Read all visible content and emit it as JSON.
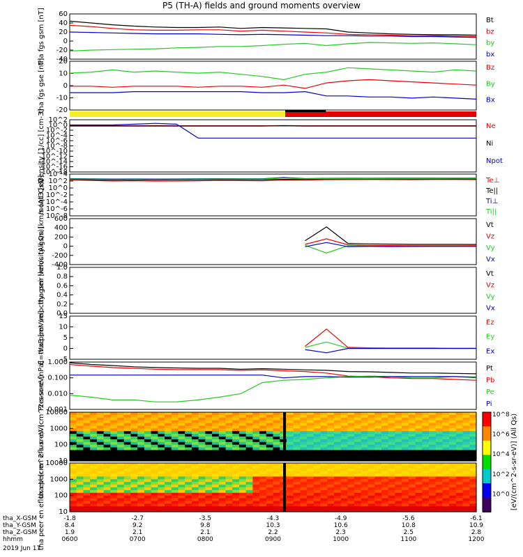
{
  "header": {
    "title": "P5 (TH-A) fields and ground moments overview"
  },
  "colors": {
    "black": "#000000",
    "red": "#ee0000",
    "green": "#22cc22",
    "blue": "#0000cc"
  },
  "chart_data": [
    {
      "type": "line",
      "ylabel": "tha fgs gsm [nT]",
      "yticks": [
        "60",
        "40",
        "20",
        "0",
        "-20",
        "-40"
      ],
      "ylim": [
        -40,
        60
      ],
      "series": [
        {
          "name": "Bt",
          "color": "#000000",
          "values": [
            44,
            40,
            36,
            33,
            31,
            30,
            30,
            31,
            28,
            30,
            29,
            28,
            27,
            20,
            18,
            16,
            15,
            14,
            14,
            13
          ]
        },
        {
          "name": "bz",
          "color": "#ee0000",
          "values": [
            35,
            32,
            28,
            25,
            24,
            24,
            25,
            25,
            22,
            24,
            22,
            20,
            18,
            15,
            14,
            13,
            12,
            12,
            11,
            10
          ]
        },
        {
          "name": "by",
          "color": "#22cc22",
          "values": [
            -22,
            -20,
            -19,
            -18,
            -17,
            -15,
            -14,
            -12,
            -12,
            -10,
            -7,
            -5,
            -10,
            -6,
            -3,
            -4,
            -5,
            -4,
            -6,
            -8
          ]
        },
        {
          "name": "bx",
          "color": "#0000cc",
          "values": [
            20,
            19,
            18,
            17,
            16,
            16,
            16,
            15,
            14,
            15,
            14,
            13,
            12,
            12,
            11,
            11,
            10,
            10,
            9,
            8
          ]
        }
      ]
    },
    {
      "type": "line",
      "ylabel": "tha fgs gse [nT]",
      "yticks": [
        "20",
        "10",
        "0",
        "-10",
        "-20"
      ],
      "ylim": [
        -25,
        20
      ],
      "series": [
        {
          "name": "Bz",
          "color": "#ee0000",
          "values": [
            -3,
            -3,
            -4,
            -3,
            -3,
            -3,
            -4,
            -3,
            -3,
            -4,
            -2,
            -5,
            0,
            2,
            3,
            2,
            1,
            0,
            -1,
            -2
          ]
        },
        {
          "name": "By",
          "color": "#22cc22",
          "values": [
            9,
            10,
            12,
            10,
            11,
            10,
            9,
            10,
            8,
            6,
            3,
            8,
            10,
            14,
            13,
            12,
            11,
            10,
            12,
            11
          ]
        },
        {
          "name": "Bx",
          "color": "#0000cc",
          "values": [
            -9,
            -9,
            -9,
            -8,
            -8,
            -8,
            -8,
            -8,
            -8,
            -9,
            -9,
            -8,
            -12,
            -12,
            -13,
            -13,
            -14,
            -13,
            -14,
            -15
          ]
        }
      ]
    },
    {
      "type": "line",
      "ylabel": "Density [1/cc] [cm-3]",
      "yticks": [
        "10^2",
        "10^0",
        "10^-2",
        "10^-4",
        "10^-6",
        "10^-8",
        "10^-10",
        "10^-12",
        "10^-14",
        "10^-16",
        "10^-18"
      ],
      "log": true,
      "series": [
        {
          "name": "Ne",
          "color": "#ee0000",
          "values": [
            0.5,
            0.5,
            0.5,
            0.5,
            0.6,
            0.5,
            0.5,
            0.5,
            0.5,
            0.5,
            0.6,
            0.5,
            0.5,
            0.5,
            0.5,
            0.5,
            0.5,
            0.5,
            0.5,
            0.5
          ]
        },
        {
          "name": "Ni",
          "color": "#000000",
          "values": [
            0.4,
            0.4,
            0.4,
            0.4,
            0.4,
            0.4,
            0.4,
            0.4,
            0.4,
            0.4,
            0.5,
            0.4,
            0.4,
            0.4,
            0.4,
            0.4,
            0.4,
            0.4,
            0.4,
            0.4
          ]
        },
        {
          "name": "Npot",
          "color": "#0000cc",
          "values": [
            1,
            1,
            1,
            2,
            4,
            2,
            1e-05,
            1e-05,
            1e-05,
            1e-05,
            1e-05,
            1e-05,
            1e-05,
            1e-05,
            1e-05,
            1e-05,
            1e-05,
            1e-05,
            1e-05,
            1e-05
          ]
        }
      ]
    },
    {
      "type": "line",
      "ylabel": "moqt3 [eV]",
      "yticks": [
        "10^4",
        "10^2",
        "10^0",
        "10^-2",
        "10^-4",
        "10^-6",
        "10^-8"
      ],
      "log": true,
      "series": [
        {
          "name": "Te⊥",
          "color": "#ee0000",
          "values": [
            200,
            150,
            100,
            120,
            90,
            100,
            120,
            150,
            130,
            120,
            200,
            180,
            250,
            260,
            270,
            260,
            250,
            270,
            280,
            260
          ]
        },
        {
          "name": "Te||",
          "color": "#000000",
          "values": [
            300,
            250,
            200,
            220,
            200,
            220,
            250,
            280,
            260,
            250,
            300,
            300,
            350,
            360,
            370,
            360,
            350,
            370,
            380,
            360
          ]
        },
        {
          "name": "Ti⊥",
          "color": "#0000cc",
          "values": [
            500,
            450,
            400,
            420,
            400,
            420,
            450,
            480,
            460,
            450,
            1000,
            500,
            600,
            620,
            640,
            650,
            660,
            680,
            700,
            720
          ]
        },
        {
          "name": "Ti||",
          "color": "#22cc22",
          "values": [
            400,
            380,
            350,
            360,
            340,
            360,
            380,
            400,
            390,
            380,
            700,
            420,
            500,
            510,
            520,
            530,
            540,
            560,
            580,
            600
          ]
        }
      ]
    },
    {
      "type": "line",
      "ylabel": "tha peir velocity gsm [km/s (All Qs)]",
      "yticks": [
        "600",
        "400",
        "200",
        "0",
        "-200",
        "-400"
      ],
      "ylim": [
        -400,
        600
      ],
      "series": [
        {
          "name": "Vt",
          "color": "#000000",
          "values": [
            null,
            null,
            null,
            null,
            null,
            null,
            null,
            null,
            null,
            null,
            null,
            120,
            420,
            60,
            50,
            45,
            40,
            40,
            40,
            38
          ]
        },
        {
          "name": "Vz",
          "color": "#ee0000",
          "values": [
            null,
            null,
            null,
            null,
            null,
            null,
            null,
            null,
            null,
            null,
            null,
            40,
            160,
            30,
            20,
            15,
            10,
            10,
            12,
            10
          ]
        },
        {
          "name": "Vy",
          "color": "#22cc22",
          "values": [
            null,
            null,
            null,
            null,
            null,
            null,
            null,
            null,
            null,
            null,
            null,
            20,
            -150,
            10,
            5,
            0,
            2,
            5,
            3,
            0
          ]
        },
        {
          "name": "Vx",
          "color": "#0000cc",
          "values": [
            null,
            null,
            null,
            null,
            null,
            null,
            null,
            null,
            null,
            null,
            null,
            -10,
            80,
            -10,
            -5,
            -8,
            -6,
            -5,
            -4,
            -5
          ]
        }
      ]
    },
    {
      "type": "line",
      "ylabel": "tha peer velocity gsm [km/s (All Qs)]",
      "yticks": [
        "1.0",
        "0.8",
        "0.6",
        "0.4",
        "0.2",
        "0.0"
      ],
      "ylim": [
        0,
        1
      ],
      "series": [
        {
          "name": "Vt",
          "color": "#000000",
          "values": []
        },
        {
          "name": "Vz",
          "color": "#ee0000",
          "values": []
        },
        {
          "name": "Vy",
          "color": "#22cc22",
          "values": []
        },
        {
          "name": "Vx",
          "color": "#0000cc",
          "values": []
        }
      ]
    },
    {
      "type": "line",
      "ylabel": "E=-VxB [mV/m]",
      "yticks": [
        "15",
        "10",
        "5",
        "0",
        "-5"
      ],
      "ylim": [
        -5,
        15
      ],
      "series": [
        {
          "name": "Ez",
          "color": "#ee0000",
          "values": [
            null,
            null,
            null,
            null,
            null,
            null,
            null,
            null,
            null,
            null,
            null,
            1,
            9,
            0.5,
            0.3,
            0.2,
            0.2,
            0.2,
            0.1,
            0.1
          ]
        },
        {
          "name": "Ey",
          "color": "#22cc22",
          "values": [
            null,
            null,
            null,
            null,
            null,
            null,
            null,
            null,
            null,
            null,
            null,
            0.5,
            3,
            0.2,
            0.1,
            0.1,
            0.1,
            0.1,
            0.1,
            0.1
          ]
        },
        {
          "name": "Ex",
          "color": "#0000cc",
          "values": [
            null,
            null,
            null,
            null,
            null,
            null,
            null,
            null,
            null,
            null,
            null,
            -0.5,
            -2,
            0,
            0,
            0,
            0,
            0,
            0,
            0
          ]
        }
      ]
    },
    {
      "type": "line",
      "ylabel": "Pressure [nPa]",
      "yticks": [
        "1.000",
        "0.100",
        "0.010",
        "0.001"
      ],
      "log": true,
      "series": [
        {
          "name": "Pt",
          "color": "#000000",
          "values": [
            0.9,
            0.7,
            0.6,
            0.5,
            0.45,
            0.42,
            0.4,
            0.4,
            0.35,
            0.38,
            0.35,
            0.32,
            0.3,
            0.25,
            0.24,
            0.22,
            0.2,
            0.2,
            0.19,
            0.18
          ]
        },
        {
          "name": "Pb",
          "color": "#ee0000",
          "values": [
            0.7,
            0.55,
            0.45,
            0.4,
            0.35,
            0.33,
            0.33,
            0.33,
            0.3,
            0.32,
            0.28,
            0.25,
            0.2,
            0.13,
            0.12,
            0.1,
            0.09,
            0.09,
            0.08,
            0.07
          ]
        },
        {
          "name": "Pe",
          "color": "#22cc22",
          "values": [
            0.008,
            0.006,
            0.004,
            0.004,
            0.003,
            0.003,
            0.004,
            0.006,
            0.01,
            0.05,
            0.07,
            0.08,
            0.1,
            0.12,
            0.13,
            0.12,
            0.1,
            0.1,
            0.12,
            0.1
          ]
        },
        {
          "name": "Pi",
          "color": "#0000cc",
          "values": [
            0.15,
            0.15,
            0.15,
            0.15,
            0.15,
            0.15,
            0.15,
            0.15,
            0.15,
            0.15,
            0.1,
            0.12,
            0.12,
            0.11,
            0.11,
            0.12,
            0.12,
            0.12,
            0.12,
            0.11
          ]
        }
      ]
    },
    {
      "type": "heatmap",
      "ylabel": "tha peir en eflux eV (cm^2-s-sr-eV)",
      "yticks": [
        "10000",
        "1000",
        "100",
        "10"
      ],
      "colorbar_label": "[eV/(cm^2-s-sr-eV)] (All Qs)",
      "colorbar_ticks": [
        "10^8",
        "10^6",
        "10^4",
        "10^2",
        "10^0"
      ]
    },
    {
      "type": "heatmap",
      "ylabel": "tha peer en eflux eV (cm^2-s-sr-eV)",
      "yticks": [
        "10000",
        "1000",
        "100",
        "10"
      ],
      "colorbar_label": "[eV/(cm^2-s-sr-eV)] (All Qs)",
      "colorbar_ticks": [
        "10^8",
        "10^6",
        "10^4",
        "10^2",
        "10^0"
      ]
    }
  ],
  "right_labels": [
    [
      "Bt",
      "bz",
      "by",
      "bx"
    ],
    [
      "Bz",
      "By",
      "Bx"
    ],
    [
      "Ne",
      "Ni",
      "Npot"
    ],
    [
      "Te⊥",
      "Te||",
      "Ti⊥",
      "Ti||"
    ],
    [
      "Vt",
      "Vz",
      "Vy",
      "Vx"
    ],
    [
      "Vt",
      "Vz",
      "Vy",
      "Vx"
    ],
    [
      "Ez",
      "Ey",
      "Ex"
    ],
    [
      "Pt",
      "Pb",
      "Pe",
      "Pi"
    ]
  ],
  "axis": {
    "rows": [
      {
        "label": "tha_X-GSM",
        "values": [
          "-1.8",
          "-2.7",
          "-3.5",
          "-4.3",
          "-4.9",
          "-5.6",
          "-6.1"
        ]
      },
      {
        "label": "tha_Y-GSM",
        "values": [
          "8.4",
          "9.2",
          "9.8",
          "10.3",
          "10.6",
          "10.8",
          "10.9"
        ]
      },
      {
        "label": "tha_Z-GSM",
        "values": [
          "1.9",
          "2.1",
          "2.1",
          "2.2",
          "2.3",
          "2.5",
          "2.8"
        ]
      },
      {
        "label": "hhmm",
        "values": [
          "0600",
          "0700",
          "0800",
          "0900",
          "1000",
          "1100",
          "1200"
        ]
      }
    ],
    "date": "2019 Jun 17"
  }
}
